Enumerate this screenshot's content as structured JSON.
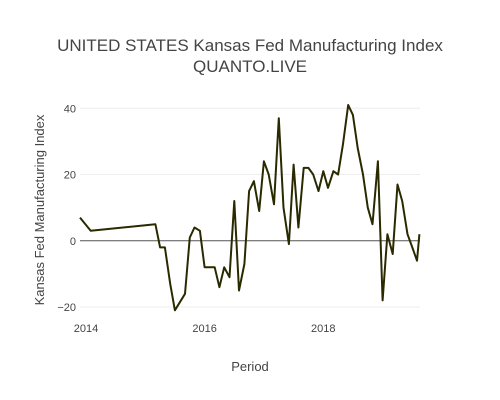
{
  "chart_data": {
    "type": "line",
    "title_lines": [
      "UNITED STATES Kansas Fed Manufacturing Index",
      "QUANTO.LIVE"
    ],
    "xlabel": "Period",
    "ylabel": "Kansas Fed Manufacturing Index",
    "x_ticks": [
      {
        "value": 2014.0,
        "label": "2014"
      },
      {
        "value": 2016.0,
        "label": "2016"
      },
      {
        "value": 2018.0,
        "label": "2018"
      }
    ],
    "y_ticks": [
      {
        "value": -20,
        "label": "−20"
      },
      {
        "value": 0,
        "label": "0"
      },
      {
        "value": 20,
        "label": "20"
      },
      {
        "value": 40,
        "label": "40"
      }
    ],
    "xlim": [
      2013.9,
      2019.63
    ],
    "ylim": [
      -21.5,
      42.5
    ],
    "grid": true,
    "line_color": "#2a2a00",
    "series": [
      {
        "points": [
          [
            2013.9,
            7
          ],
          [
            2014.08,
            3
          ],
          [
            2015.17,
            5
          ],
          [
            2015.25,
            -2
          ],
          [
            2015.33,
            -2
          ],
          [
            2015.42,
            -13
          ],
          [
            2015.5,
            -21
          ],
          [
            2015.67,
            -16
          ],
          [
            2015.75,
            1
          ],
          [
            2015.83,
            4
          ],
          [
            2015.92,
            3
          ],
          [
            2016.0,
            -8
          ],
          [
            2016.08,
            -8
          ],
          [
            2016.17,
            -8
          ],
          [
            2016.25,
            -14
          ],
          [
            2016.33,
            -8
          ],
          [
            2016.42,
            -11
          ],
          [
            2016.5,
            12
          ],
          [
            2016.58,
            -15
          ],
          [
            2016.67,
            -7
          ],
          [
            2016.75,
            15
          ],
          [
            2016.83,
            18
          ],
          [
            2016.92,
            9
          ],
          [
            2017.0,
            24
          ],
          [
            2017.08,
            20
          ],
          [
            2017.17,
            11
          ],
          [
            2017.25,
            37
          ],
          [
            2017.33,
            10
          ],
          [
            2017.42,
            -1
          ],
          [
            2017.5,
            23
          ],
          [
            2017.58,
            4
          ],
          [
            2017.67,
            22
          ],
          [
            2017.75,
            22
          ],
          [
            2017.83,
            20
          ],
          [
            2017.92,
            15
          ],
          [
            2018.0,
            21
          ],
          [
            2018.08,
            16
          ],
          [
            2018.17,
            21
          ],
          [
            2018.25,
            20
          ],
          [
            2018.33,
            29
          ],
          [
            2018.42,
            41
          ],
          [
            2018.5,
            38
          ],
          [
            2018.58,
            28
          ],
          [
            2018.67,
            20
          ],
          [
            2018.75,
            10
          ],
          [
            2018.83,
            5
          ],
          [
            2018.92,
            24
          ],
          [
            2019.0,
            -18
          ],
          [
            2019.08,
            2
          ],
          [
            2019.17,
            -4
          ],
          [
            2019.25,
            17
          ],
          [
            2019.33,
            12
          ],
          [
            2019.42,
            2
          ],
          [
            2019.5,
            -2
          ],
          [
            2019.58,
            -6
          ],
          [
            2019.62,
            2
          ]
        ]
      }
    ]
  }
}
